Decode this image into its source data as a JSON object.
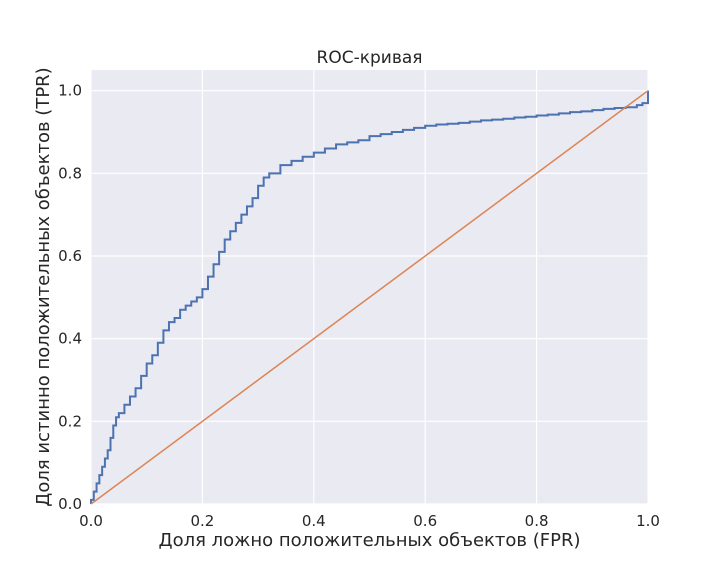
{
  "chart_data": {
    "type": "line",
    "title": "ROC-кривая",
    "xlabel": "Доля ложно положительных объектов (FPR)",
    "ylabel": "Доля истинно положительных объектов (TPR)",
    "xlim": [
      0.0,
      1.0
    ],
    "ylim": [
      0.0,
      1.05
    ],
    "x_ticks": [
      "0.0",
      "0.2",
      "0.4",
      "0.6",
      "0.8",
      "1.0"
    ],
    "y_ticks": [
      "0.0",
      "0.2",
      "0.4",
      "0.6",
      "0.8",
      "1.0"
    ],
    "grid": true,
    "background": "#eaeaf2",
    "series": [
      {
        "color": "#4c72b0",
        "step": true,
        "x": [
          0.0,
          0.0,
          0.005,
          0.01,
          0.015,
          0.02,
          0.025,
          0.03,
          0.035,
          0.04,
          0.045,
          0.05,
          0.06,
          0.07,
          0.08,
          0.09,
          0.1,
          0.11,
          0.12,
          0.13,
          0.14,
          0.15,
          0.16,
          0.17,
          0.18,
          0.19,
          0.2,
          0.21,
          0.22,
          0.23,
          0.24,
          0.25,
          0.26,
          0.27,
          0.28,
          0.29,
          0.3,
          0.31,
          0.32,
          0.34,
          0.36,
          0.38,
          0.4,
          0.42,
          0.44,
          0.46,
          0.48,
          0.5,
          0.52,
          0.54,
          0.56,
          0.58,
          0.6,
          0.62,
          0.64,
          0.66,
          0.68,
          0.7,
          0.72,
          0.74,
          0.76,
          0.78,
          0.8,
          0.82,
          0.84,
          0.86,
          0.88,
          0.9,
          0.92,
          0.94,
          0.96,
          0.98,
          0.99,
          1.0,
          1.0
        ],
        "y": [
          0.0,
          0.01,
          0.03,
          0.05,
          0.07,
          0.09,
          0.11,
          0.13,
          0.16,
          0.19,
          0.21,
          0.22,
          0.24,
          0.26,
          0.28,
          0.31,
          0.34,
          0.36,
          0.39,
          0.42,
          0.44,
          0.45,
          0.47,
          0.48,
          0.49,
          0.5,
          0.52,
          0.55,
          0.58,
          0.61,
          0.64,
          0.66,
          0.68,
          0.7,
          0.72,
          0.74,
          0.77,
          0.79,
          0.8,
          0.82,
          0.83,
          0.84,
          0.85,
          0.86,
          0.87,
          0.875,
          0.88,
          0.89,
          0.895,
          0.9,
          0.905,
          0.91,
          0.915,
          0.918,
          0.92,
          0.922,
          0.925,
          0.928,
          0.93,
          0.932,
          0.935,
          0.937,
          0.94,
          0.942,
          0.945,
          0.948,
          0.95,
          0.953,
          0.956,
          0.958,
          0.96,
          0.965,
          0.97,
          0.98,
          1.0
        ]
      },
      {
        "color": "#dd8452",
        "step": false,
        "x": [
          0.0,
          1.0
        ],
        "y": [
          0.0,
          1.0
        ]
      }
    ]
  }
}
